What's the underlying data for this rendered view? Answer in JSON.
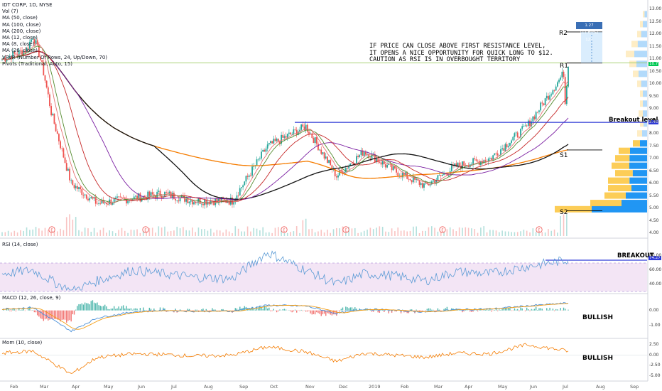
{
  "legend": {
    "symbol": "IDT CORP, 1D, NYSE",
    "indicators": [
      "Vol (7)",
      "MA (50, close)",
      "MA (100, close)",
      "MA (200, close)",
      "MA (12, close)",
      "MA (8, close)",
      "MA (26, close)",
      "VPVR (Number Of Rows, 24, Up/Down, 70)",
      "Pivots (Traditional, Auto, 15)"
    ]
  },
  "annotation": {
    "lines": [
      "IF PRICE CAN CLOSE ABOVE FIRST RESISTANCE LEVEL,",
      "IT OPENS A NICE OPPORTUNITY FOR QUICK LONG TO $12.",
      "CAUTION AS RSI IS IN OVERBOUGHT TERRITORY"
    ]
  },
  "labels": {
    "breakout_level": "Breakout level",
    "breakout": "BREAKOUT",
    "bullish_macd": "BULLISH",
    "bullish_mom": "BULLISH",
    "r1": "R1",
    "r2": "R2",
    "s1": "S1",
    "s2": "S2",
    "target": "1.27 (11.69%) 127",
    "rsi_legend": "RSI (14, close)",
    "macd_legend": "MACD (12, 26, close, 9)",
    "mom_legend": "Mom (10, close)",
    "breakout_price": "8.46",
    "last_price": "10.7",
    "rsi_value": "74.27"
  },
  "x_axis": [
    "Feb",
    "Mar",
    "Apr",
    "May",
    "Jun",
    "Jul",
    "Aug",
    "Sep",
    "Oct",
    "Nov",
    "Dec",
    "2019",
    "Feb",
    "Mar",
    "Apr",
    "May",
    "Jun",
    "Jul",
    "Aug",
    "Sep"
  ],
  "y_axis_price": [
    "13.00",
    "12.50",
    "12.00",
    "11.50",
    "11.00",
    "10.50",
    "10.00",
    "9.50",
    "9.00",
    "8.50",
    "8.00",
    "7.50",
    "7.00",
    "6.50",
    "6.00",
    "5.50",
    "5.00",
    "4.50",
    "4.00"
  ],
  "y_axis_rsi": [
    "80.00",
    "60.00",
    "40.00"
  ],
  "y_axis_macd": [
    "0.00",
    "-1.00"
  ],
  "y_axis_mom": [
    "2.50",
    "0.00",
    "-2.50",
    "-5.00"
  ],
  "colors": {
    "up": "#26a69a",
    "down": "#ef5350",
    "ma_black": "#111111",
    "ma_orange": "#f57c00",
    "ma_purple": "#7b1fa2",
    "ma_red": "#c62828",
    "ma_green": "#558b2f",
    "breakout_line": "#2f3ad6",
    "rsi": "#5b9bd5",
    "rsi_band": "#f3e5f5",
    "macd": "#4a90d9",
    "signal": "#f39c12",
    "mom": "#f57c00"
  },
  "chart_data": [
    {
      "type": "candlestick",
      "title": "IDT CORP, 1D, NYSE",
      "x": [
        "Feb",
        "Mar",
        "Apr",
        "May",
        "Jun",
        "Jul",
        "Aug",
        "Sep",
        "Oct",
        "Nov",
        "Dec",
        "2019",
        "Feb",
        "Mar",
        "Apr",
        "May",
        "Jun",
        "Jul"
      ],
      "close": [
        11.0,
        11.5,
        6.0,
        5.2,
        5.4,
        5.6,
        5.3,
        5.3,
        7.5,
        8.3,
        6.3,
        7.3,
        6.5,
        5.9,
        6.7,
        7.0,
        8.3,
        10.7
      ],
      "ylim": [
        4.0,
        13.1
      ],
      "levels": [
        {
          "name": "Breakout level",
          "value": 8.46
        },
        {
          "name": "R1",
          "value": 10.85
        },
        {
          "name": "R2",
          "value": 12.1
        },
        {
          "name": "S1",
          "value": 7.35
        },
        {
          "name": "S2",
          "value": 4.9
        }
      ]
    },
    {
      "type": "line",
      "title": "RSI (14, close)",
      "x": [
        "Feb",
        "Mar",
        "Apr",
        "May",
        "Jun",
        "Jul",
        "Aug",
        "Sep",
        "Oct",
        "Nov",
        "Dec",
        "2019",
        "Feb",
        "Mar",
        "Apr",
        "May",
        "Jun",
        "Jul"
      ],
      "values": [
        55,
        60,
        30,
        45,
        60,
        55,
        50,
        48,
        85,
        60,
        40,
        55,
        52,
        45,
        58,
        55,
        65,
        74.27
      ],
      "ylim": [
        30,
        90
      ]
    },
    {
      "type": "line",
      "title": "MACD (12, 26, close, 9)",
      "x": [
        "Feb",
        "Mar",
        "Apr",
        "May",
        "Jun",
        "Jul",
        "Aug",
        "Sep",
        "Oct",
        "Nov",
        "Dec",
        "2019",
        "Feb",
        "Mar",
        "Apr",
        "May",
        "Jun",
        "Jul"
      ],
      "values": [
        0.1,
        0.2,
        -1.4,
        -0.5,
        -0.1,
        0.0,
        -0.05,
        -0.05,
        0.35,
        0.3,
        -0.2,
        0.1,
        0.0,
        -0.1,
        0.05,
        0.1,
        0.3,
        0.5
      ],
      "ylim": [
        -1.6,
        0.8
      ]
    },
    {
      "type": "line",
      "title": "Mom (10, close)",
      "x": [
        "Feb",
        "Mar",
        "Apr",
        "May",
        "Jun",
        "Jul",
        "Aug",
        "Sep",
        "Oct",
        "Nov",
        "Dec",
        "2019",
        "Feb",
        "Mar",
        "Apr",
        "May",
        "Jun",
        "Jul"
      ],
      "values": [
        0.5,
        1.0,
        -4.5,
        -0.5,
        0.3,
        0.2,
        -0.2,
        0.0,
        2.0,
        0.8,
        -1.5,
        0.5,
        0.0,
        -0.5,
        0.5,
        0.3,
        2.5,
        1.0
      ],
      "ylim": [
        -5.5,
        3.0
      ]
    }
  ]
}
